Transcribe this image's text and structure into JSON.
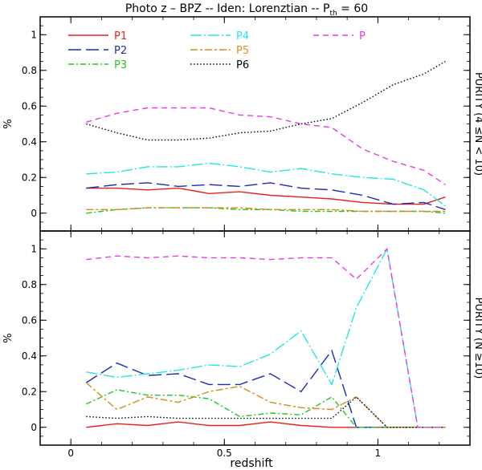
{
  "title": "Photo z – BPZ -- Iden: Lorenztian -- P",
  "title_sub": "th",
  "title_tail": " = 60",
  "xlabel": "redshift",
  "legend": [
    {
      "label": "P1",
      "color": "#e8201a",
      "dash": "solid"
    },
    {
      "label": "P2",
      "color": "#1a2bb5",
      "dash": "longdash"
    },
    {
      "label": "P3",
      "color": "#1ec81e",
      "dash": "dashdot"
    },
    {
      "label": "P4",
      "color": "#22e6e6",
      "dash": "dashdotlong"
    },
    {
      "label": "P5",
      "color": "#d98a1e",
      "dash": "dashdot2"
    },
    {
      "label": "P6",
      "color": "#000000",
      "dash": "dotted"
    },
    {
      "label": "P",
      "color": "#e83ae8",
      "dash": "dashed"
    }
  ],
  "chart_data": [
    {
      "type": "line",
      "panel": "top",
      "ylabel": "%",
      "right_label": "PURITY (4 ≤N < 10)",
      "xlim": [
        -0.1,
        1.3
      ],
      "ylim": [
        -0.1,
        1.1
      ],
      "xticks": [
        0,
        0.5,
        1
      ],
      "yticks": [
        0,
        0.2,
        0.4,
        0.6,
        0.8,
        1
      ],
      "x": [
        0.05,
        0.15,
        0.25,
        0.35,
        0.45,
        0.55,
        0.65,
        0.75,
        0.85,
        0.95,
        1.05,
        1.15,
        1.22
      ],
      "series": [
        {
          "name": "P1",
          "values": [
            0.14,
            0.14,
            0.13,
            0.14,
            0.11,
            0.12,
            0.1,
            0.09,
            0.08,
            0.06,
            0.05,
            0.05,
            0.09
          ]
        },
        {
          "name": "P2",
          "values": [
            0.14,
            0.16,
            0.17,
            0.15,
            0.16,
            0.15,
            0.17,
            0.14,
            0.13,
            0.1,
            0.05,
            0.06,
            0.02
          ]
        },
        {
          "name": "P3",
          "values": [
            0.0,
            0.02,
            0.03,
            0.03,
            0.03,
            0.02,
            0.02,
            0.01,
            0.01,
            0.01,
            0.01,
            0.01,
            0.0
          ]
        },
        {
          "name": "P4",
          "values": [
            0.22,
            0.23,
            0.26,
            0.26,
            0.28,
            0.26,
            0.23,
            0.25,
            0.22,
            0.2,
            0.19,
            0.13,
            0.04
          ]
        },
        {
          "name": "P5",
          "values": [
            0.02,
            0.02,
            0.03,
            0.03,
            0.03,
            0.03,
            0.02,
            0.02,
            0.02,
            0.01,
            0.01,
            0.01,
            0.01
          ]
        },
        {
          "name": "P6",
          "values": [
            0.5,
            0.45,
            0.41,
            0.41,
            0.42,
            0.45,
            0.46,
            0.5,
            0.53,
            0.62,
            0.72,
            0.78,
            0.85
          ]
        },
        {
          "name": "P",
          "values": [
            0.51,
            0.56,
            0.59,
            0.59,
            0.59,
            0.55,
            0.54,
            0.5,
            0.48,
            0.36,
            0.29,
            0.24,
            0.16
          ]
        }
      ]
    },
    {
      "type": "line",
      "panel": "bottom",
      "ylabel": "%",
      "right_label": "PURITY (N ≥10)",
      "xlim": [
        -0.1,
        1.3
      ],
      "ylim": [
        -0.1,
        1.1
      ],
      "xticks": [
        0,
        0.5,
        1
      ],
      "yticks": [
        0,
        0.2,
        0.4,
        0.6,
        0.8,
        1
      ],
      "x": [
        0.05,
        0.15,
        0.25,
        0.35,
        0.45,
        0.55,
        0.65,
        0.75,
        0.85,
        0.93,
        1.03,
        1.13,
        1.22
      ],
      "series": [
        {
          "name": "P1",
          "values": [
            0.0,
            0.02,
            0.01,
            0.03,
            0.01,
            0.01,
            0.03,
            0.01,
            0.0,
            0.0,
            0.0,
            0.0,
            0.0
          ]
        },
        {
          "name": "P2",
          "values": [
            0.25,
            0.36,
            0.29,
            0.3,
            0.24,
            0.24,
            0.3,
            0.2,
            0.43,
            0.0,
            0.0,
            0.0,
            0.0
          ]
        },
        {
          "name": "P3",
          "values": [
            0.13,
            0.21,
            0.18,
            0.18,
            0.16,
            0.06,
            0.08,
            0.07,
            0.17,
            0.0,
            0.0,
            0.0,
            0.0
          ]
        },
        {
          "name": "P4",
          "values": [
            0.31,
            0.28,
            0.3,
            0.32,
            0.35,
            0.34,
            0.41,
            0.54,
            0.24,
            0.67,
            1.0,
            0.0,
            0.0
          ]
        },
        {
          "name": "P5",
          "values": [
            0.25,
            0.1,
            0.17,
            0.14,
            0.2,
            0.23,
            0.14,
            0.11,
            0.1,
            0.17,
            0.0,
            0.0,
            0.0
          ]
        },
        {
          "name": "P6",
          "values": [
            0.06,
            0.05,
            0.06,
            0.05,
            0.05,
            0.05,
            0.05,
            0.05,
            0.05,
            0.17,
            0.0,
            0.0,
            0.0
          ]
        },
        {
          "name": "P",
          "values": [
            0.94,
            0.96,
            0.95,
            0.96,
            0.95,
            0.95,
            0.94,
            0.95,
            0.95,
            0.83,
            1.0,
            0.0,
            0.0
          ]
        }
      ]
    }
  ]
}
